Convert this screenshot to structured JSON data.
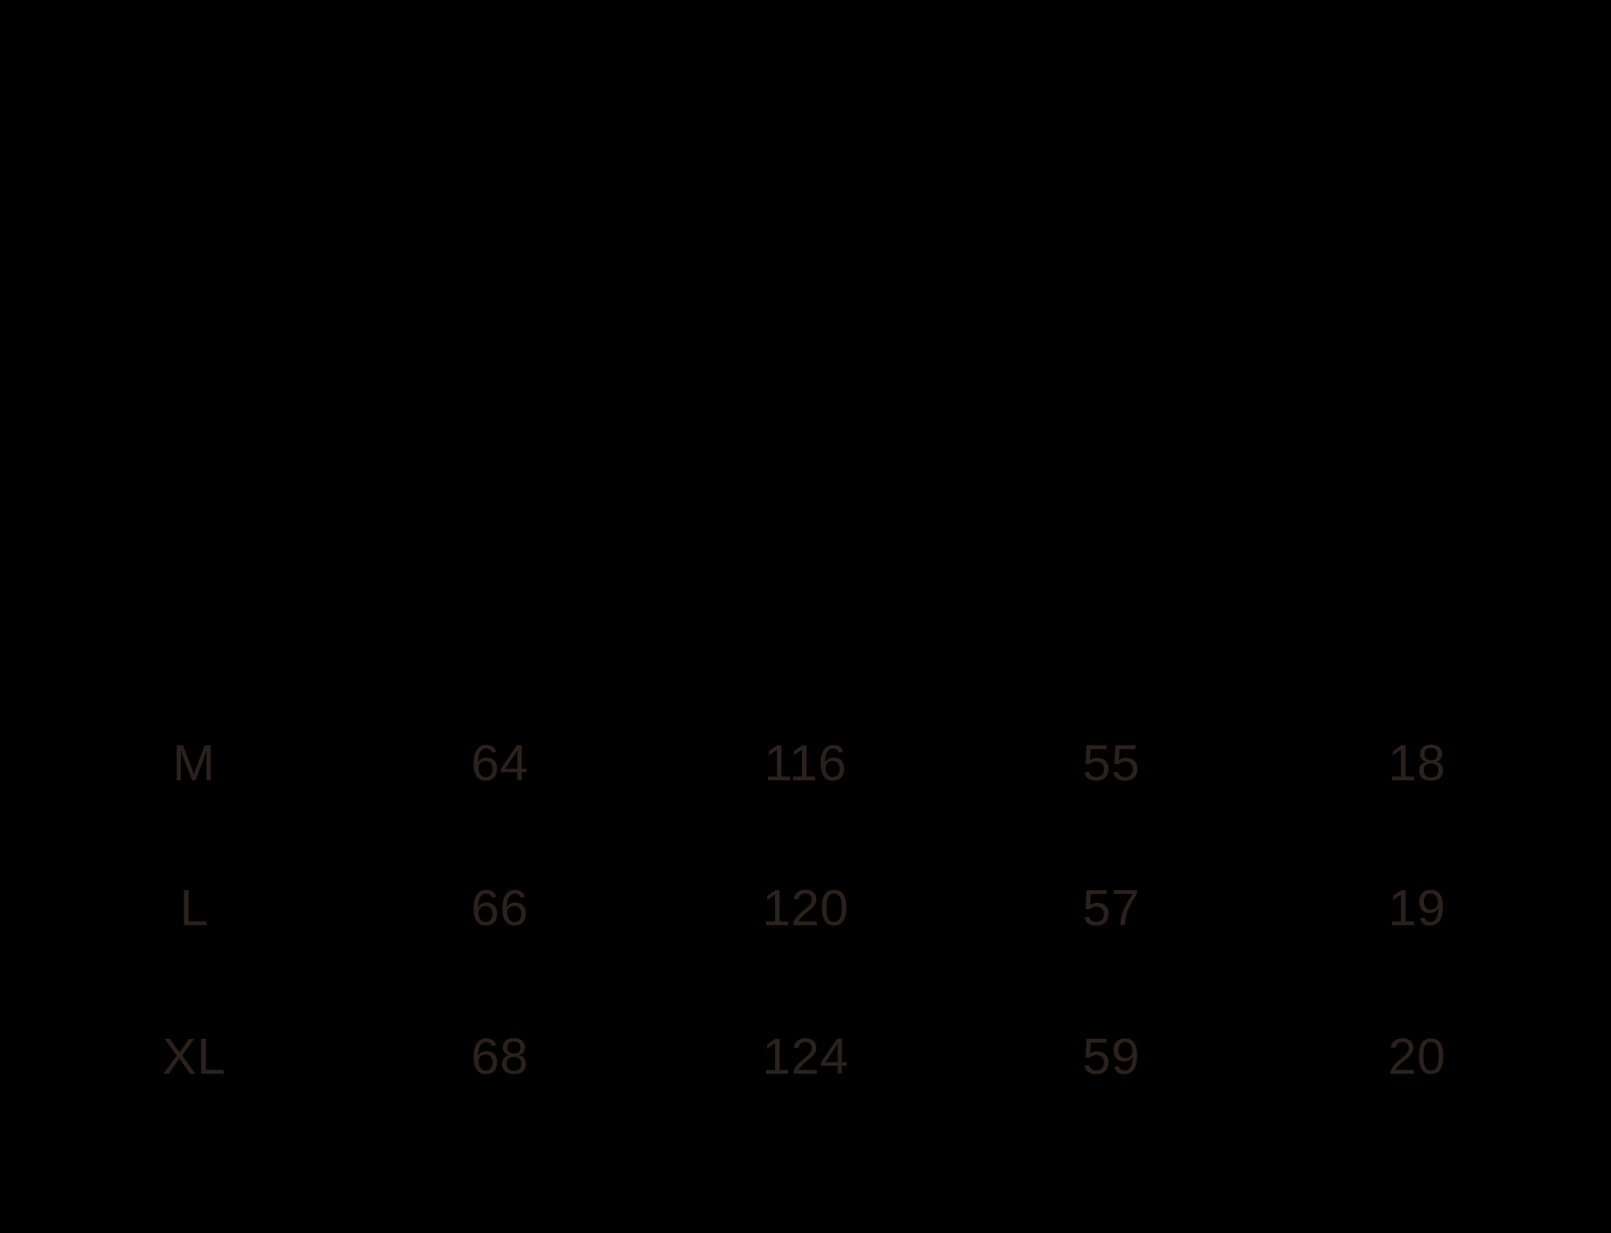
{
  "canvas": {
    "background_color": "#000000",
    "text_color": "#2B211D"
  },
  "chart_data": {
    "type": "table",
    "title": "",
    "layout_hints": {
      "columns_count": 5,
      "column_alignment": "center",
      "headers_visible": false,
      "gridlines": false
    },
    "rows": [
      [
        "M",
        "64",
        "116",
        "55",
        "18"
      ],
      [
        "L",
        "66",
        "120",
        "57",
        "19"
      ],
      [
        "XL",
        "68",
        "124",
        "59",
        "20"
      ]
    ]
  }
}
